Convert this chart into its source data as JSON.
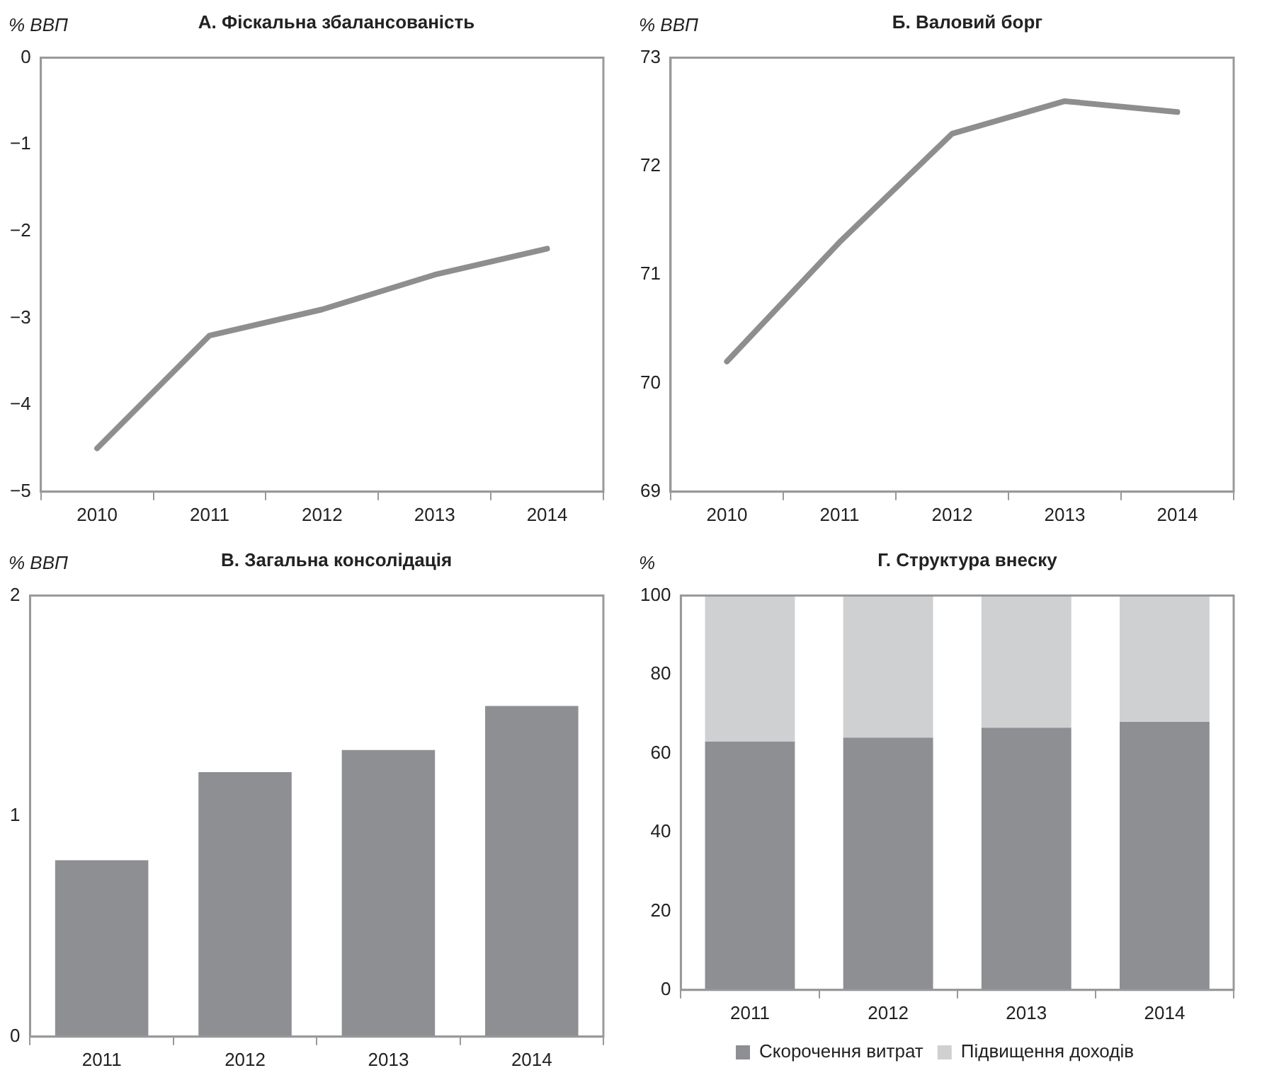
{
  "chart_data": [
    {
      "type": "line",
      "title": "А. Фіскальна збалансованість",
      "ylabel": "% ВВП",
      "categories": [
        "2010",
        "2011",
        "2012",
        "2013",
        "2014"
      ],
      "series": [
        {
          "color": "#8e8e8e",
          "values": [
            -4.5,
            -3.2,
            -2.9,
            -2.5,
            -2.2
          ]
        }
      ],
      "ylim": [
        -5,
        0
      ],
      "yticks": [
        {
          "value": -5,
          "label": "−5"
        },
        {
          "value": -4,
          "label": "−4"
        },
        {
          "value": -3,
          "label": "−3"
        },
        {
          "value": -2,
          "label": "−2"
        },
        {
          "value": -1,
          "label": "−1"
        },
        0
      ],
      "grid": false,
      "legend": false,
      "marker": "none",
      "line_style": "solid"
    },
    {
      "type": "line",
      "title": "Б. Валовий борг",
      "ylabel": "% ВВП",
      "categories": [
        "2010",
        "2011",
        "2012",
        "2013",
        "2014"
      ],
      "series": [
        {
          "color": "#8e8e8e",
          "values": [
            70.2,
            71.3,
            72.3,
            72.6,
            72.5
          ]
        }
      ],
      "ylim": [
        69,
        73
      ],
      "yticks": [
        69,
        70,
        71,
        72,
        73
      ],
      "grid": false,
      "legend": false,
      "marker": "none",
      "line_style": "solid"
    },
    {
      "type": "bar",
      "title": "В. Загальна консолідація",
      "ylabel": "% ВВП",
      "categories": [
        "2011",
        "2012",
        "2013",
        "2014"
      ],
      "series": [
        {
          "color": "#8e8f93",
          "values": [
            0.8,
            1.2,
            1.3,
            1.5
          ]
        }
      ],
      "ylim": [
        0,
        2
      ],
      "yticks": [
        0,
        1,
        2
      ],
      "grid": false,
      "legend": false
    },
    {
      "type": "bar",
      "title": "Г. Структура внеску",
      "ylabel": "%",
      "categories": [
        "2011",
        "2012",
        "2013",
        "2014"
      ],
      "stacked": true,
      "series": [
        {
          "name": "Скорочення витрат",
          "color": "#8e8f93",
          "values": [
            63,
            64,
            66.5,
            68
          ]
        },
        {
          "name": "Підвищення доходів",
          "color": "#cfd0d2",
          "values": [
            37,
            36,
            33.5,
            32
          ]
        }
      ],
      "ylim": [
        0,
        100
      ],
      "yticks": [
        0,
        20,
        40,
        60,
        80,
        100
      ],
      "grid": false,
      "legend": "bottom"
    }
  ]
}
